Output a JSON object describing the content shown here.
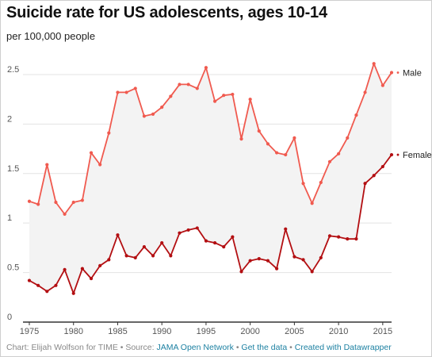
{
  "title": "Suicide rate for US adolescents, ages 10-14",
  "subtitle": "per 100,000 people",
  "footer": {
    "chart_by": "Chart: Elijah Wolfson for TIME",
    "sep": " • ",
    "source_prefix": "Source: ",
    "source_link": "JAMA Open Network",
    "get_data": "Get the data",
    "created_with": "Created with Datawrapper"
  },
  "colors": {
    "male": "#f05a4f",
    "female": "#b30f12",
    "band": "#f3f3f3",
    "grid": "#e3e3e3",
    "axis": "#333333"
  },
  "chart_data": {
    "type": "line",
    "title": "Suicide rate for US adolescents, ages 10-14",
    "subtitle": "per 100,000 people",
    "xlabel": "",
    "ylabel": "",
    "xlim": [
      1975,
      2016
    ],
    "ylim": [
      0,
      2.7
    ],
    "grid": true,
    "legend": "direct labels at line ends",
    "x_ticks": [
      "1975",
      "1980",
      "1985",
      "1990",
      "1995",
      "2000",
      "2005",
      "2010",
      "2015"
    ],
    "y_ticks": [
      "0",
      "0.5",
      "1",
      "1.5",
      "2",
      "2.5"
    ],
    "x": [
      1975,
      1976,
      1977,
      1978,
      1979,
      1980,
      1981,
      1982,
      1983,
      1984,
      1985,
      1986,
      1987,
      1988,
      1989,
      1990,
      1991,
      1992,
      1993,
      1994,
      1995,
      1996,
      1997,
      1998,
      1999,
      2000,
      2001,
      2002,
      2003,
      2004,
      2005,
      2006,
      2007,
      2008,
      2009,
      2010,
      2011,
      2012,
      2013,
      2014,
      2015,
      2016
    ],
    "series": [
      {
        "name": "Male",
        "values": [
          1.22,
          1.19,
          1.59,
          1.21,
          1.09,
          1.21,
          1.23,
          1.71,
          1.59,
          1.91,
          2.32,
          2.32,
          2.36,
          2.08,
          2.1,
          2.17,
          2.28,
          2.4,
          2.4,
          2.36,
          2.57,
          2.23,
          2.29,
          2.3,
          1.85,
          2.25,
          1.93,
          1.8,
          1.71,
          1.69,
          1.86,
          1.4,
          1.2,
          1.41,
          1.62,
          1.7,
          1.86,
          2.09,
          2.32,
          2.61,
          2.39,
          2.52
        ]
      },
      {
        "name": "Female",
        "values": [
          0.42,
          0.37,
          0.31,
          0.37,
          0.53,
          0.29,
          0.54,
          0.44,
          0.57,
          0.63,
          0.88,
          0.67,
          0.65,
          0.76,
          0.67,
          0.8,
          0.67,
          0.9,
          0.93,
          0.95,
          0.82,
          0.8,
          0.76,
          0.86,
          0.51,
          0.62,
          0.64,
          0.62,
          0.54,
          0.94,
          0.66,
          0.63,
          0.51,
          0.65,
          0.87,
          0.86,
          0.84,
          0.84,
          1.4,
          1.48,
          1.57,
          1.69
        ]
      }
    ]
  }
}
